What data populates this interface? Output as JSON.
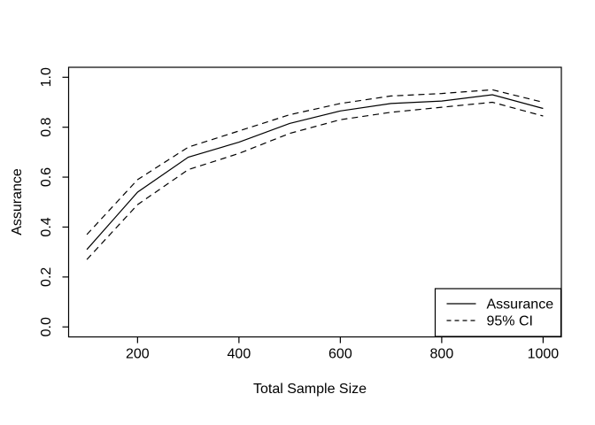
{
  "chart_data": {
    "type": "line",
    "title": "",
    "xlabel": "Total Sample Size",
    "ylabel": "Assurance",
    "x": [
      100,
      200,
      300,
      400,
      500,
      600,
      700,
      800,
      900,
      1000
    ],
    "series": [
      {
        "name": "Assurance",
        "style": "solid",
        "values": [
          0.31,
          0.54,
          0.68,
          0.74,
          0.815,
          0.865,
          0.895,
          0.905,
          0.93,
          0.875
        ]
      },
      {
        "name": "95% CI upper",
        "style": "dashed",
        "values": [
          0.37,
          0.59,
          0.72,
          0.785,
          0.85,
          0.895,
          0.925,
          0.935,
          0.95,
          0.9
        ]
      },
      {
        "name": "95% CI lower",
        "style": "dashed",
        "values": [
          0.27,
          0.49,
          0.63,
          0.695,
          0.775,
          0.83,
          0.86,
          0.88,
          0.9,
          0.845
        ]
      }
    ],
    "x_ticks": [
      200,
      400,
      600,
      800,
      1000
    ],
    "y_ticks": [
      "0.0",
      "0.2",
      "0.4",
      "0.6",
      "0.8",
      "1.0"
    ],
    "xlim": [
      64,
      1036
    ],
    "ylim": [
      -0.04,
      1.04
    ],
    "grid": false,
    "legend": {
      "position": "bottom-right",
      "entries": [
        {
          "label": "Assurance",
          "line": "solid"
        },
        {
          "label": "95% CI",
          "line": "dashed"
        }
      ]
    },
    "colors": {
      "line": "#000000",
      "frame": "#000000",
      "background": "#ffffff"
    }
  }
}
